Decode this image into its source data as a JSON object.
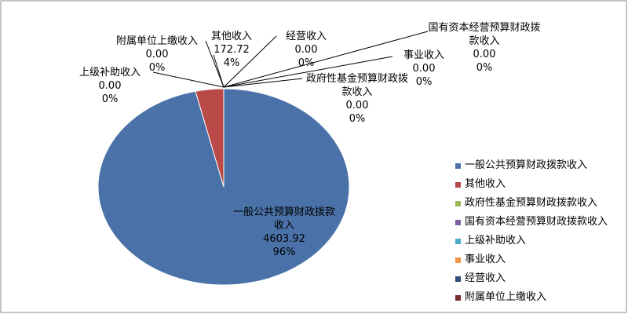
{
  "chart_data": {
    "type": "pie",
    "categories": [
      "一般公共预算财政拨款收入",
      "其他收入",
      "政府性基金预算财政拨款收入",
      "国有资本经营预算财政拨款收入",
      "上级补助收入",
      "事业收入",
      "经营收入",
      "附属单位上缴收入"
    ],
    "values": [
      4603.92,
      172.72,
      0,
      0,
      0,
      0,
      0,
      0
    ],
    "value_labels": [
      "4603.92",
      "172.72",
      "0.00",
      "0.00",
      "0.00",
      "0.00",
      "0.00",
      "0.00"
    ],
    "percent_labels": [
      "96%",
      "4%",
      "0%",
      "0%",
      "0%",
      "0%",
      "0%",
      "0%"
    ],
    "colors": [
      "#4a72a8",
      "#b94a48",
      "#98b954",
      "#7d5fa0",
      "#4aacc6",
      "#f79646",
      "#2c4d75",
      "#772c2a"
    ],
    "legend": "right"
  }
}
